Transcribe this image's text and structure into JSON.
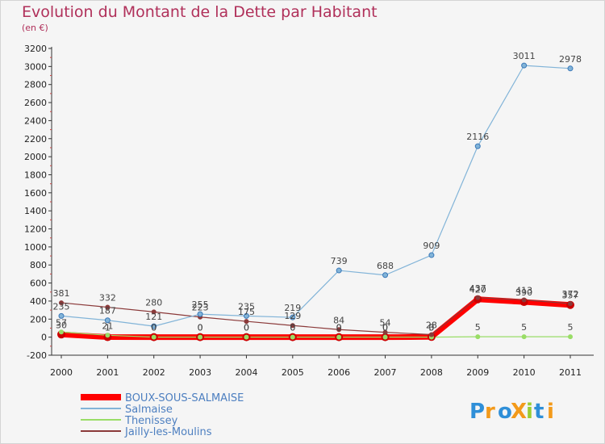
{
  "chart_data": {
    "type": "line",
    "title": "Evolution du Montant de la Dette par Habitant",
    "subtitle": "(en €)",
    "xlabel": "",
    "ylabel": "",
    "categories": [
      "2000",
      "2001",
      "2002",
      "2003",
      "2004",
      "2005",
      "2006",
      "2007",
      "2008",
      "2009",
      "2010",
      "2011"
    ],
    "ylim": [
      -200,
      3200
    ],
    "yticks": [
      -200,
      0,
      200,
      400,
      600,
      800,
      1000,
      1200,
      1400,
      1600,
      1800,
      2000,
      2200,
      2400,
      2600,
      2800,
      3000,
      3200
    ],
    "grid": false,
    "legend_position": "bottom-left",
    "series": [
      {
        "name": "BOUX-SOUS-SALMAISE",
        "color": "#ff0000",
        "values": [
          30,
          1,
          0,
          0,
          0,
          0,
          0,
          0,
          3,
          420,
          390,
          357
        ]
      },
      {
        "name": "Salmaise",
        "color": "#82b4d8",
        "values": [
          235,
          187,
          121,
          255,
          235,
          219,
          739,
          688,
          909,
          2116,
          3011,
          2978
        ]
      },
      {
        "name": "Thenissey",
        "color": "#99dd66",
        "values": [
          57,
          21,
          0,
          0,
          0,
          0,
          0,
          0,
          0,
          5,
          5,
          5
        ]
      },
      {
        "name": "Jailly-les-Moulins",
        "color": "#8b3a3a",
        "values": [
          381,
          332,
          280,
          223,
          175,
          129,
          84,
          54,
          28,
          437,
          413,
          372
        ]
      }
    ]
  },
  "logo": {
    "text": "ProXiti",
    "letters": [
      "P",
      "r",
      "o",
      "X",
      "i",
      "t",
      "i"
    ],
    "colors": [
      "#2f8fd8",
      "#f39a1a",
      "#2f8fd8",
      "#f39a1a",
      "#9acd32",
      "#2f8fd8",
      "#f39a1a"
    ]
  }
}
